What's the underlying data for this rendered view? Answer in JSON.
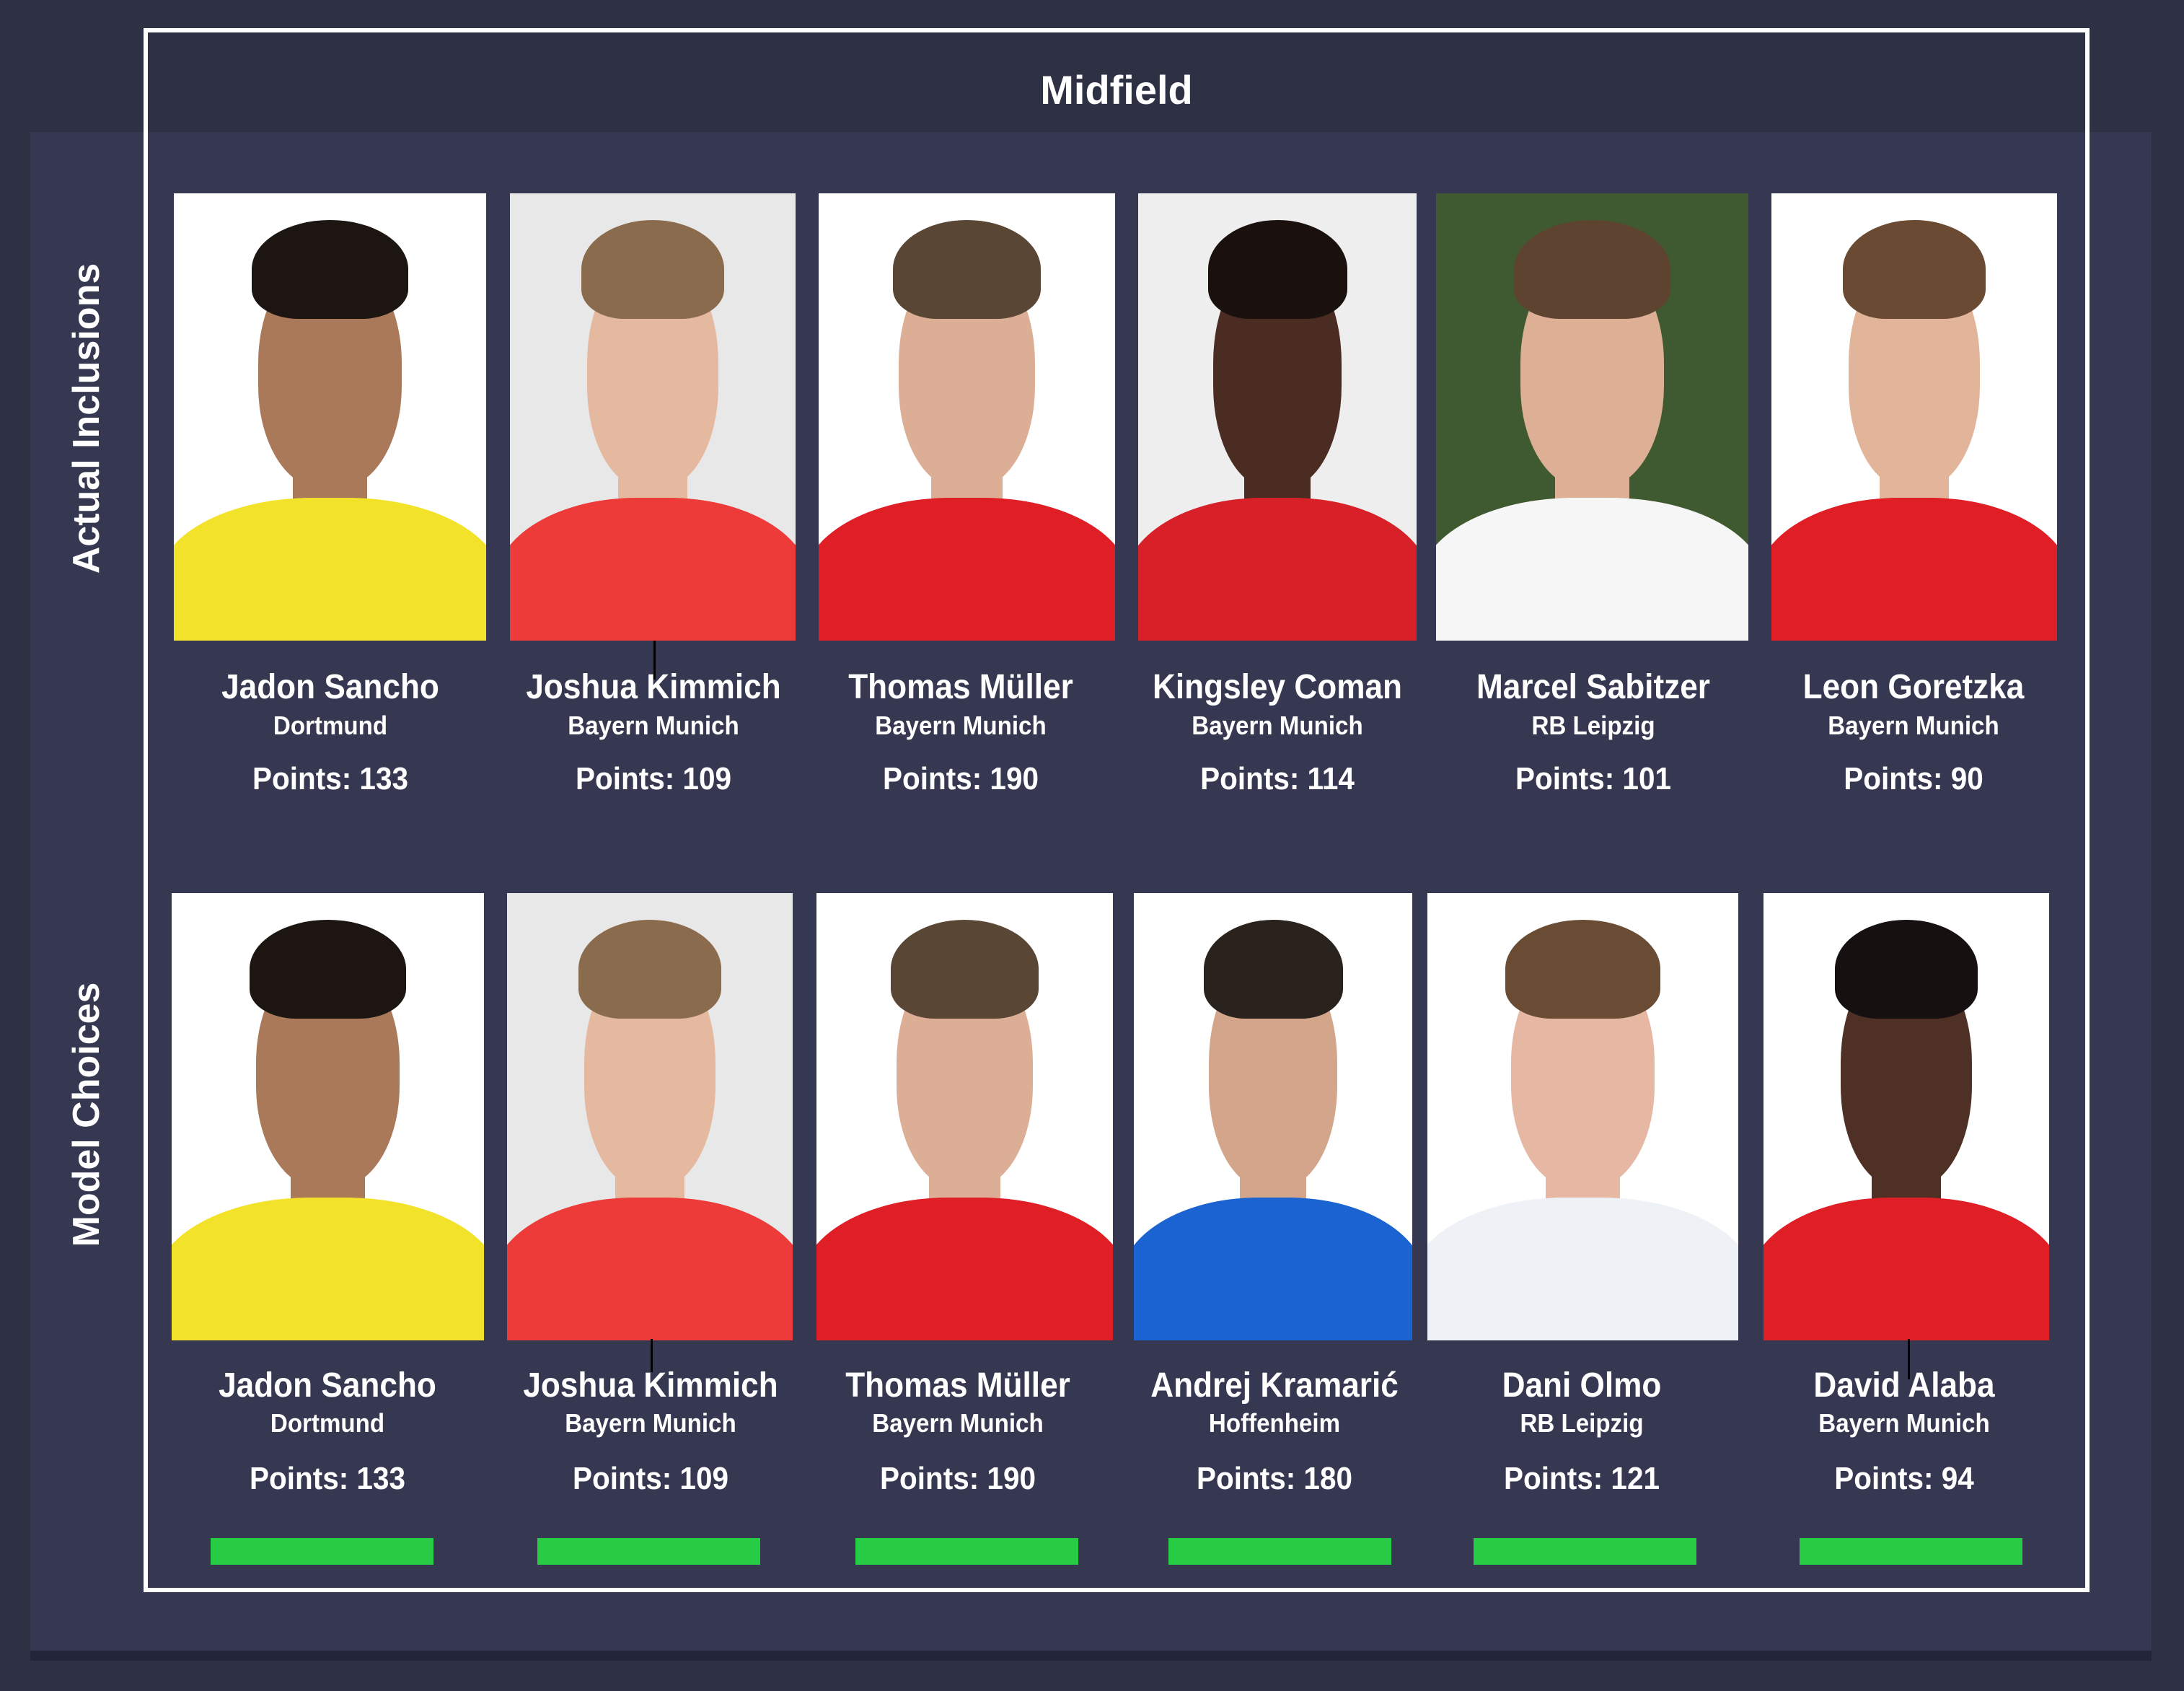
{
  "title": "Midfield",
  "accent_color": "#28cc44",
  "rows": [
    {
      "label": "Actual Inclusions",
      "players": [
        {
          "name": "Jadon Sancho",
          "team": "Dortmund",
          "points": "Points: 133",
          "jersey": "#f2e22a",
          "skin": "#a9795a",
          "hair": "#1c1512",
          "bg": "#ffffff"
        },
        {
          "name": "Joshua Kimmich",
          "team": "Bayern Munich",
          "points": "Points: 109",
          "jersey": "#ec3b38",
          "skin": "#e4b9a0",
          "hair": "#8a6b4e",
          "bg": "#e8e8e8"
        },
        {
          "name": "Thomas Müller",
          "team": "Bayern Munich",
          "points": "Points: 190",
          "jersey": "#e01e26",
          "skin": "#dcae95",
          "hair": "#5a4634",
          "bg": "#ffffff"
        },
        {
          "name": "Kingsley Coman",
          "team": "Bayern Munich",
          "points": "Points: 114",
          "jersey": "#d82028",
          "skin": "#4a2c22",
          "hair": "#1a110e",
          "bg": "#eeeeee"
        },
        {
          "name": "Marcel Sabitzer",
          "team": "RB Leipzig",
          "points": "Points: 101",
          "jersey": "#f6f6f6",
          "skin": "#ddb095",
          "hair": "#5e4330",
          "bg": "#3f5a30"
        },
        {
          "name": "Leon Goretzka",
          "team": "Bayern Munich",
          "points": "Points: 90",
          "jersey": "#e01e26",
          "skin": "#e2b49a",
          "hair": "#6a4a32",
          "bg": "#ffffff"
        }
      ]
    },
    {
      "label": "Model Choices",
      "players": [
        {
          "name": "Jadon Sancho",
          "team": "Dortmund",
          "points": "Points: 133",
          "jersey": "#f2e22a",
          "skin": "#a9795a",
          "hair": "#1c1512",
          "bg": "#ffffff",
          "selected": true
        },
        {
          "name": "Joshua Kimmich",
          "team": "Bayern Munich",
          "points": "Points: 109",
          "jersey": "#ec3b38",
          "skin": "#e4b9a0",
          "hair": "#8a6b4e",
          "bg": "#e8e8e8",
          "selected": true
        },
        {
          "name": "Thomas Müller",
          "team": "Bayern Munich",
          "points": "Points: 190",
          "jersey": "#e01e26",
          "skin": "#dcae95",
          "hair": "#5a4634",
          "bg": "#ffffff",
          "selected": true
        },
        {
          "name": "Andrej Kramarić",
          "team": "Hoffenheim",
          "points": "Points: 180",
          "jersey": "#1b63d0",
          "skin": "#d3a58a",
          "hair": "#2a221d",
          "bg": "#ffffff",
          "selected": true
        },
        {
          "name": "Dani Olmo",
          "team": "RB Leipzig",
          "points": "Points: 121",
          "jersey": "#eef2f6",
          "skin": "#e6b8a4",
          "hair": "#6a4c34",
          "bg": "#ffffff",
          "selected": true
        },
        {
          "name": "David Alaba",
          "team": "Bayern Munich",
          "points": "Points: 94",
          "jersey": "#e01e26",
          "skin": "#4e3024",
          "hair": "#161010",
          "bg": "#ffffff",
          "selected": true
        }
      ]
    }
  ]
}
